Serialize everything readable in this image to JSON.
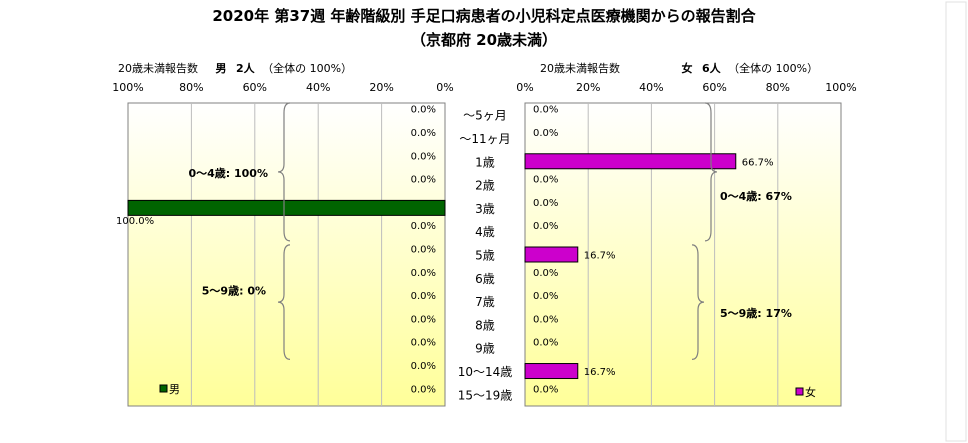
{
  "title": {
    "line1": "2020年 第37週 年齢階級別 手足口病患者の小児科定点医療機関からの報告割合",
    "line2": "（京都府 20歳未満）"
  },
  "left_header": {
    "count_label": "20歳未満報告数",
    "sex": "男",
    "count": "2人",
    "total_note": "（全体の 100%）"
  },
  "right_header": {
    "count_label": "20歳未満報告数",
    "sex": "女",
    "count": "6人",
    "total_note": "（全体の 100%）"
  },
  "colors": {
    "male_bar": "#006400",
    "female_bar": "#cc00cc",
    "bg_top": "#ffffff",
    "bg_bottom": "#ffff99",
    "grid": "#bdbdbd"
  },
  "chart_data": {
    "type": "bar",
    "orientation": "horizontal",
    "layout": "back-to-back pyramid",
    "categories": [
      "〜5ヶ月",
      "〜11ヶ月",
      "1歳",
      "2歳",
      "3歳",
      "4歳",
      "5歳",
      "6歳",
      "7歳",
      "8歳",
      "9歳",
      "10〜14歳",
      "15〜19歳"
    ],
    "xlim": [
      0,
      100
    ],
    "x_ticks": [
      "0%",
      "20%",
      "40%",
      "60%",
      "80%",
      "100%"
    ],
    "series": [
      {
        "name": "男",
        "side": "left",
        "values": [
          0,
          0,
          0,
          0,
          100,
          0,
          0,
          0,
          0,
          0,
          0,
          0,
          0
        ],
        "labels": [
          "0.0%",
          "0.0%",
          "0.0%",
          "0.0%",
          "100.0%",
          "0.0%",
          "0.0%",
          "0.0%",
          "0.0%",
          "0.0%",
          "0.0%",
          "0.0%",
          "0.0%"
        ]
      },
      {
        "name": "女",
        "side": "right",
        "values": [
          0,
          0,
          66.7,
          0,
          0,
          0,
          16.7,
          0,
          0,
          0,
          0,
          16.7,
          0
        ],
        "labels": [
          "0.0%",
          "0.0%",
          "66.7%",
          "0.0%",
          "0.0%",
          "0.0%",
          "16.7%",
          "0.0%",
          "0.0%",
          "0.0%",
          "0.0%",
          "16.7%",
          "0.0%"
        ]
      }
    ],
    "annotations": {
      "male_0_4": "0〜4歳: 100%",
      "male_5_9": "5〜9歳: 0%",
      "female_0_4": "0〜4歳: 67%",
      "female_5_9": "5〜9歳: 17%"
    },
    "legend": {
      "male": "男",
      "female": "女",
      "placement": "bottom-left / bottom-right"
    },
    "grid": true
  }
}
